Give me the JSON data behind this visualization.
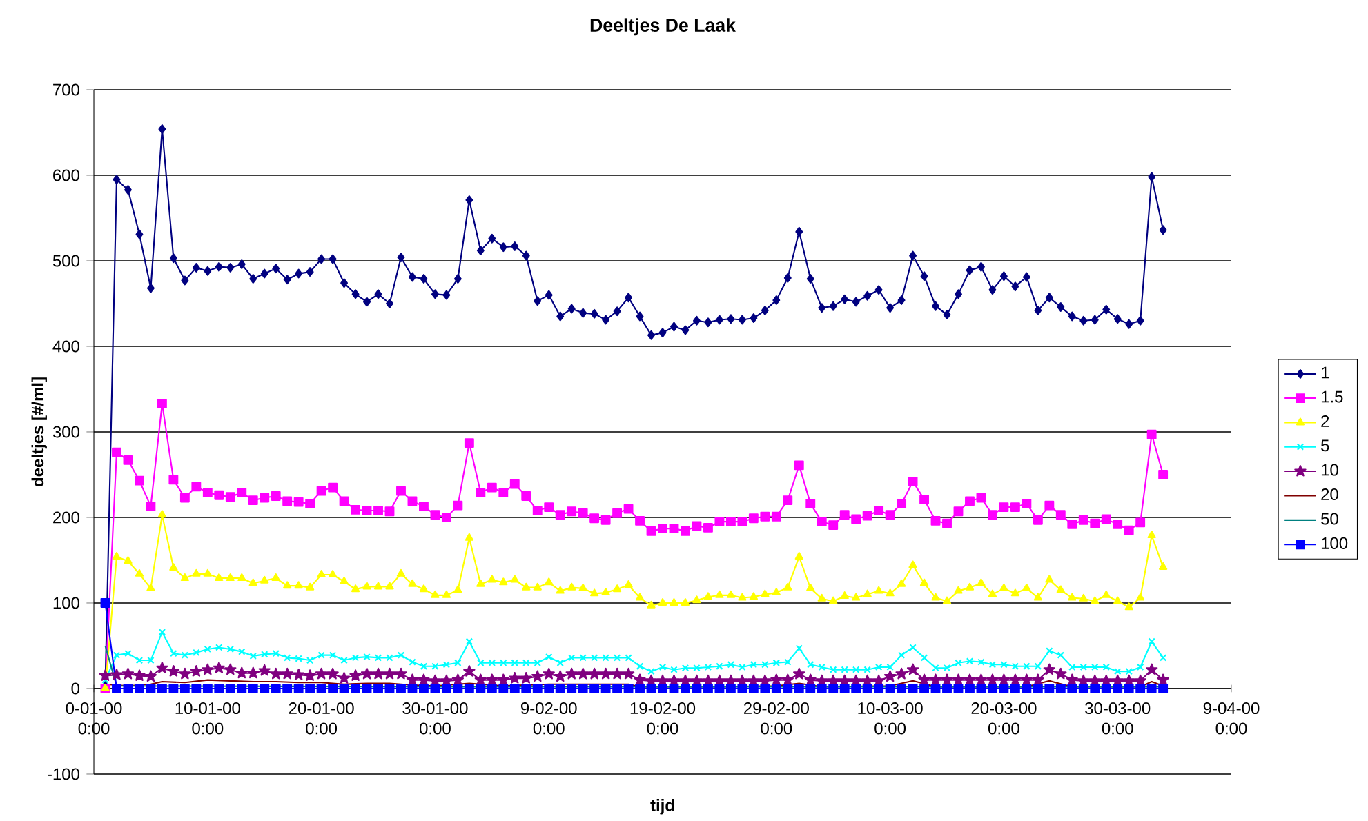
{
  "chart_data": {
    "type": "line",
    "title": "Deeltjes De Laak",
    "xlabel": "tijd",
    "ylabel": "deeltjes [#/ml]",
    "x": [
      "2000-01-01",
      "2000-01-02",
      "2000-01-03",
      "2000-01-04",
      "2000-01-05",
      "2000-01-06",
      "2000-01-07",
      "2000-01-08",
      "2000-01-09",
      "2000-01-10",
      "2000-01-11",
      "2000-01-12",
      "2000-01-13",
      "2000-01-14",
      "2000-01-15",
      "2000-01-16",
      "2000-01-17",
      "2000-01-18",
      "2000-01-19",
      "2000-01-20",
      "2000-01-21",
      "2000-01-22",
      "2000-01-23",
      "2000-01-24",
      "2000-01-25",
      "2000-01-26",
      "2000-01-27",
      "2000-01-28",
      "2000-01-29",
      "2000-01-30",
      "2000-01-31",
      "2000-02-01",
      "2000-02-02",
      "2000-02-03",
      "2000-02-04",
      "2000-02-05",
      "2000-02-06",
      "2000-02-07",
      "2000-02-08",
      "2000-02-09",
      "2000-02-10",
      "2000-02-11",
      "2000-02-12",
      "2000-02-13",
      "2000-02-14",
      "2000-02-15",
      "2000-02-16",
      "2000-02-17",
      "2000-02-18",
      "2000-02-19",
      "2000-02-20",
      "2000-02-21",
      "2000-02-22",
      "2000-02-23",
      "2000-02-24",
      "2000-02-25",
      "2000-02-26",
      "2000-02-27",
      "2000-02-28",
      "2000-02-29",
      "2000-03-01",
      "2000-03-02",
      "2000-03-03",
      "2000-03-04",
      "2000-03-05",
      "2000-03-06",
      "2000-03-07",
      "2000-03-08",
      "2000-03-09",
      "2000-03-10",
      "2000-03-11",
      "2000-03-12",
      "2000-03-13",
      "2000-03-14",
      "2000-03-15",
      "2000-03-16",
      "2000-03-17",
      "2000-03-18",
      "2000-03-19",
      "2000-03-20",
      "2000-03-21",
      "2000-03-22",
      "2000-03-23",
      "2000-03-24",
      "2000-03-25",
      "2000-03-26",
      "2000-03-27",
      "2000-03-28",
      "2000-03-29",
      "2000-03-30",
      "2000-03-31",
      "2000-04-01",
      "2000-04-02",
      "2000-04-03"
    ],
    "series": [
      {
        "name": "1",
        "color": "#000080",
        "marker": "diamond",
        "values": [
          3,
          595,
          583,
          531,
          468,
          654,
          503,
          477,
          492,
          488,
          493,
          492,
          496,
          479,
          485,
          491,
          478,
          485,
          487,
          502,
          502,
          474,
          461,
          452,
          461,
          450,
          504,
          481,
          479,
          461,
          460,
          479,
          571,
          512,
          526,
          516,
          517,
          506,
          453,
          460,
          435,
          444,
          439,
          438,
          431,
          441,
          457,
          435,
          413,
          416,
          423,
          419,
          430,
          428,
          431,
          432,
          431,
          433,
          442,
          454,
          480,
          534,
          479,
          445,
          447,
          455,
          452,
          459,
          466,
          445,
          454,
          506,
          482,
          447,
          437,
          461,
          489,
          493,
          466,
          482,
          470,
          481,
          442,
          457,
          446,
          435,
          430,
          431,
          443,
          432,
          426,
          430,
          598,
          536
        ]
      },
      {
        "name": "1.5",
        "color": "#ff00ff",
        "marker": "square",
        "values": [
          0,
          276,
          267,
          243,
          213,
          333,
          244,
          223,
          236,
          229,
          226,
          224,
          229,
          220,
          223,
          225,
          219,
          218,
          216,
          231,
          235,
          219,
          209,
          208,
          208,
          207,
          231,
          219,
          213,
          203,
          200,
          214,
          287,
          229,
          235,
          229,
          239,
          225,
          208,
          212,
          203,
          207,
          205,
          199,
          197,
          205,
          210,
          196,
          184,
          187,
          187,
          184,
          190,
          188,
          195,
          195,
          195,
          199,
          201,
          201,
          220,
          261,
          216,
          195,
          191,
          203,
          198,
          202,
          208,
          203,
          216,
          242,
          221,
          196,
          193,
          207,
          219,
          223,
          203,
          212,
          212,
          216,
          197,
          214,
          203,
          192,
          197,
          193,
          198,
          192,
          185,
          194,
          297,
          250
        ]
      },
      {
        "name": "2",
        "color": "#ffff00",
        "marker": "triangle",
        "values": [
          0,
          154,
          149,
          134,
          117,
          203,
          141,
          129,
          134,
          134,
          129,
          129,
          129,
          123,
          126,
          129,
          120,
          120,
          118,
          133,
          133,
          125,
          116,
          119,
          119,
          119,
          134,
          122,
          116,
          109,
          109,
          115,
          176,
          122,
          127,
          124,
          127,
          118,
          118,
          124,
          114,
          118,
          117,
          111,
          112,
          116,
          121,
          106,
          97,
          100,
          100,
          100,
          103,
          107,
          109,
          109,
          106,
          107,
          110,
          112,
          118,
          154,
          117,
          105,
          102,
          108,
          106,
          110,
          114,
          111,
          122,
          144,
          123,
          106,
          102,
          114,
          118,
          123,
          110,
          117,
          111,
          117,
          106,
          127,
          115,
          106,
          105,
          102,
          109,
          102,
          95,
          106,
          179,
          142
        ]
      },
      {
        "name": "5",
        "color": "#00ffff",
        "marker": "cross",
        "values": [
          10,
          39,
          41,
          33,
          33,
          66,
          41,
          39,
          42,
          46,
          48,
          46,
          43,
          38,
          40,
          41,
          36,
          35,
          33,
          39,
          39,
          33,
          36,
          37,
          36,
          36,
          39,
          31,
          26,
          26,
          28,
          30,
          55,
          30,
          30,
          30,
          30,
          30,
          30,
          37,
          30,
          36,
          36,
          36,
          36,
          36,
          36,
          26,
          20,
          25,
          22,
          24,
          24,
          25,
          26,
          28,
          25,
          28,
          28,
          30,
          31,
          47,
          28,
          25,
          22,
          22,
          22,
          22,
          25,
          25,
          39,
          48,
          36,
          24,
          24,
          30,
          32,
          31,
          28,
          28,
          26,
          26,
          26,
          44,
          39,
          25,
          25,
          25,
          25,
          20,
          20,
          25,
          55,
          36
        ]
      },
      {
        "name": "10",
        "color": "#800080",
        "marker": "star",
        "values": [
          15,
          16,
          17,
          15,
          14,
          24,
          20,
          17,
          20,
          22,
          24,
          22,
          18,
          18,
          21,
          17,
          17,
          16,
          15,
          17,
          17,
          12,
          15,
          17,
          17,
          17,
          17,
          10,
          10,
          9,
          9,
          10,
          20,
          10,
          10,
          10,
          12,
          12,
          14,
          17,
          14,
          17,
          17,
          17,
          17,
          17,
          17,
          10,
          9,
          9,
          9,
          9,
          9,
          9,
          9,
          9,
          9,
          9,
          9,
          10,
          10,
          17,
          10,
          9,
          9,
          9,
          9,
          9,
          9,
          14,
          17,
          22,
          10,
          10,
          10,
          10,
          10,
          10,
          10,
          10,
          10,
          10,
          10,
          22,
          17,
          10,
          9,
          9,
          9,
          9,
          9,
          9,
          22,
          10
        ]
      },
      {
        "name": "20",
        "color": "#800000",
        "marker": "none",
        "x": [
          "2000-01-01",
          "2000-01-03",
          "2000-01-05",
          "2000-01-06",
          "2000-01-08",
          "2000-01-10",
          "2000-01-12",
          "2000-01-14",
          "2000-01-16",
          "2000-01-18",
          "2000-01-20",
          "2000-01-22",
          "2000-01-24",
          "2000-01-26",
          "2000-01-28",
          "2000-01-30",
          "2000-02-02",
          "2000-02-05",
          "2000-02-09",
          "2000-02-16",
          "2000-02-17",
          "2000-02-24",
          "2000-02-29",
          "2000-03-02",
          "2000-03-04",
          "2000-03-10",
          "2000-03-12",
          "2000-03-14",
          "2000-03-22",
          "2000-03-24",
          "2000-03-26",
          "2000-04-01",
          "2000-04-02",
          "2000-04-03"
        ],
        "values": [
          5,
          3,
          5,
          8,
          7,
          10,
          9,
          8,
          8,
          7,
          7,
          5,
          6,
          6,
          4,
          3,
          6,
          3,
          5,
          5,
          2,
          2,
          3,
          6,
          2,
          3,
          9,
          2,
          2,
          9,
          2,
          2,
          8,
          3
        ]
      },
      {
        "name": "50",
        "color": "#008080",
        "marker": "none",
        "x": [
          "2000-01-01",
          "2000-01-02",
          "2000-01-30",
          "2000-02-29",
          "2000-04-03"
        ],
        "values": [
          50,
          3,
          2,
          2,
          2
        ]
      },
      {
        "name": "100",
        "color": "#0000ff",
        "marker": "square",
        "values": [
          100,
          0,
          0,
          0,
          0,
          0,
          0,
          0,
          0,
          0,
          0,
          0,
          0,
          0,
          0,
          0,
          0,
          0,
          0,
          0,
          0,
          0,
          0,
          0,
          0,
          0,
          0,
          0,
          0,
          0,
          0,
          0,
          0,
          0,
          0,
          0,
          0,
          0,
          0,
          0,
          0,
          0,
          0,
          0,
          0,
          0,
          0,
          0,
          0,
          0,
          0,
          0,
          0,
          0,
          0,
          0,
          0,
          0,
          0,
          0,
          0,
          0,
          0,
          0,
          0,
          0,
          0,
          0,
          0,
          0,
          0,
          0,
          0,
          0,
          0,
          0,
          0,
          0,
          0,
          0,
          0,
          0,
          0,
          0,
          0,
          0,
          0,
          0,
          0,
          0,
          0,
          0,
          0,
          0
        ]
      }
    ],
    "xlim": [
      "1999-12-31",
      "2000-04-09"
    ],
    "xticks": [
      {
        "value": "1999-12-31",
        "label": "0-01-00 0:00"
      },
      {
        "value": "2000-01-10",
        "label": "10-01-00 0:00"
      },
      {
        "value": "2000-01-20",
        "label": "20-01-00 0:00"
      },
      {
        "value": "2000-01-30",
        "label": "30-01-00 0:00"
      },
      {
        "value": "2000-02-09",
        "label": "9-02-00 0:00"
      },
      {
        "value": "2000-02-19",
        "label": "19-02-00 0:00"
      },
      {
        "value": "2000-02-29",
        "label": "29-02-00 0:00"
      },
      {
        "value": "2000-03-10",
        "label": "10-03-00 0:00"
      },
      {
        "value": "2000-03-20",
        "label": "20-03-00 0:00"
      },
      {
        "value": "2000-03-30",
        "label": "30-03-00 0:00"
      },
      {
        "value": "2000-04-09",
        "label": "9-04-00 0:00"
      }
    ],
    "ylim": [
      -100,
      700
    ],
    "yticks": [
      -100,
      0,
      100,
      200,
      300,
      400,
      500,
      600,
      700
    ],
    "grid": "y",
    "legend": "right",
    "line_style": "solid"
  }
}
